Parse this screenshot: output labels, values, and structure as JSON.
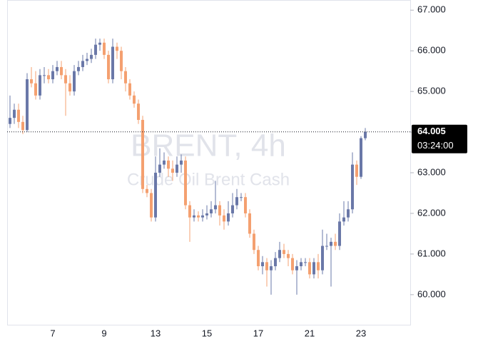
{
  "chart_data": {
    "type": "candlestick",
    "watermark_symbol": "BRENT, 4h",
    "watermark_name": "Crude Oil Brent Cash",
    "countdown": "03:24:00",
    "up_color": "#6a78a8",
    "down_color": "#f4a070",
    "ylim": [
      59.26,
      67.25
    ],
    "yticks": [
      {
        "value": 60,
        "label": "60.000"
      },
      {
        "value": 61,
        "label": "61.000"
      },
      {
        "value": 62,
        "label": "62.000"
      },
      {
        "value": 63,
        "label": "63.000"
      },
      {
        "value": 64,
        "label": "64.000"
      },
      {
        "value": 65,
        "label": "65.000"
      },
      {
        "value": 66,
        "label": "66.000"
      },
      {
        "value": 67,
        "label": "67.000"
      }
    ],
    "categories": [
      null,
      null,
      null,
      null,
      null,
      null,
      null,
      null,
      null,
      null,
      "7",
      null,
      null,
      null,
      null,
      null,
      null,
      null,
      null,
      null,
      null,
      null,
      "9",
      null,
      null,
      null,
      null,
      null,
      null,
      null,
      null,
      null,
      null,
      null,
      "13",
      null,
      null,
      null,
      null,
      null,
      null,
      null,
      null,
      null,
      null,
      null,
      "15",
      null,
      null,
      null,
      null,
      null,
      null,
      null,
      null,
      null,
      null,
      null,
      "17",
      null,
      null,
      null,
      null,
      null,
      null,
      null,
      null,
      null,
      null,
      null,
      "21",
      null,
      null,
      null,
      null,
      null,
      null,
      null,
      null,
      null,
      null,
      null,
      "23",
      null
    ],
    "open": [
      64.2,
      64.35,
      64.55,
      64.25,
      64.05,
      65.3,
      65.2,
      64.9,
      65.4,
      65.4,
      65.3,
      65.5,
      65.6,
      65.4,
      65.2,
      65.0,
      65.5,
      65.6,
      65.75,
      65.8,
      65.9,
      66.15,
      66.2,
      65.9,
      65.3,
      66.1,
      66.0,
      65.5,
      65.2,
      64.9,
      64.7,
      64.3,
      62.6,
      62.5,
      61.9,
      63.0,
      63.2,
      63.3,
      63.1,
      63.0,
      63.2,
      63.3,
      62.2,
      61.9,
      61.95,
      61.9,
      61.95,
      62.0,
      62.1,
      62.2,
      61.95,
      61.8,
      62.0,
      62.2,
      62.4,
      62.4,
      62.0,
      61.5,
      61.1,
      60.7,
      60.8,
      60.6,
      60.7,
      60.9,
      61.1,
      61.0,
      60.9,
      60.6,
      60.7,
      60.8,
      60.8,
      60.5,
      60.8,
      60.6,
      61.2,
      61.2,
      61.3,
      61.2,
      61.8,
      61.9,
      62.1,
      63.2,
      62.9,
      63.85
    ],
    "high": [
      64.9,
      64.7,
      64.7,
      64.4,
      65.45,
      65.6,
      65.5,
      65.55,
      65.6,
      65.55,
      65.65,
      65.75,
      65.75,
      65.55,
      65.4,
      65.65,
      65.75,
      65.9,
      65.95,
      66.05,
      66.3,
      66.3,
      66.3,
      66.0,
      66.3,
      66.2,
      66.1,
      65.6,
      65.3,
      65.0,
      64.8,
      64.4,
      62.7,
      62.6,
      63.4,
      63.6,
      63.5,
      63.4,
      63.3,
      63.4,
      63.45,
      63.4,
      62.3,
      62.1,
      62.05,
      62.1,
      62.2,
      62.3,
      62.8,
      62.3,
      62.1,
      62.3,
      62.5,
      62.6,
      62.5,
      62.5,
      62.1,
      61.6,
      61.2,
      60.95,
      60.9,
      60.85,
      61.05,
      61.3,
      61.25,
      61.1,
      61.0,
      60.85,
      60.9,
      60.9,
      60.9,
      60.9,
      61.0,
      61.6,
      61.5,
      61.4,
      61.5,
      62.0,
      62.3,
      62.3,
      63.5,
      63.3,
      63.9,
      64.1
    ],
    "low": [
      64.1,
      64.2,
      64.1,
      63.95,
      64.0,
      65.1,
      64.8,
      64.8,
      65.2,
      65.2,
      65.2,
      65.4,
      65.3,
      64.4,
      64.9,
      64.9,
      65.4,
      65.5,
      65.65,
      65.7,
      65.8,
      66.0,
      65.8,
      65.2,
      65.2,
      65.8,
      65.3,
      65.0,
      64.8,
      64.6,
      64.2,
      62.5,
      62.4,
      61.8,
      61.8,
      62.9,
      63.1,
      62.9,
      62.8,
      62.9,
      63.0,
      62.1,
      61.3,
      61.8,
      61.8,
      61.8,
      61.85,
      61.9,
      62.0,
      61.7,
      61.6,
      61.7,
      61.9,
      62.1,
      62.3,
      61.9,
      61.4,
      61.0,
      60.6,
      60.5,
      60.2,
      60.0,
      60.6,
      60.8,
      60.9,
      60.7,
      60.5,
      60.0,
      60.6,
      60.7,
      60.4,
      60.4,
      60.4,
      60.5,
      61.1,
      60.2,
      61.1,
      61.1,
      61.7,
      61.8,
      62.0,
      62.7,
      62.85,
      63.8
    ],
    "close": [
      64.35,
      64.55,
      64.25,
      64.05,
      65.3,
      65.2,
      64.9,
      65.4,
      65.4,
      65.3,
      65.5,
      65.6,
      65.4,
      65.2,
      65.0,
      65.5,
      65.6,
      65.75,
      65.8,
      65.9,
      66.15,
      66.2,
      65.9,
      65.3,
      66.1,
      66.0,
      65.5,
      65.2,
      64.9,
      64.7,
      64.3,
      62.6,
      62.5,
      61.9,
      63.0,
      63.2,
      63.3,
      63.1,
      63.0,
      63.2,
      63.3,
      62.2,
      61.9,
      61.95,
      61.9,
      61.95,
      62.0,
      62.1,
      62.2,
      61.95,
      61.8,
      62.0,
      62.2,
      62.4,
      62.4,
      62.0,
      61.5,
      61.1,
      60.7,
      60.8,
      60.6,
      60.7,
      60.9,
      61.1,
      61.0,
      60.9,
      60.6,
      60.7,
      60.8,
      60.8,
      60.5,
      60.8,
      60.6,
      61.2,
      61.2,
      61.3,
      61.2,
      61.8,
      61.9,
      62.1,
      63.2,
      62.9,
      63.85,
      64.005
    ]
  }
}
